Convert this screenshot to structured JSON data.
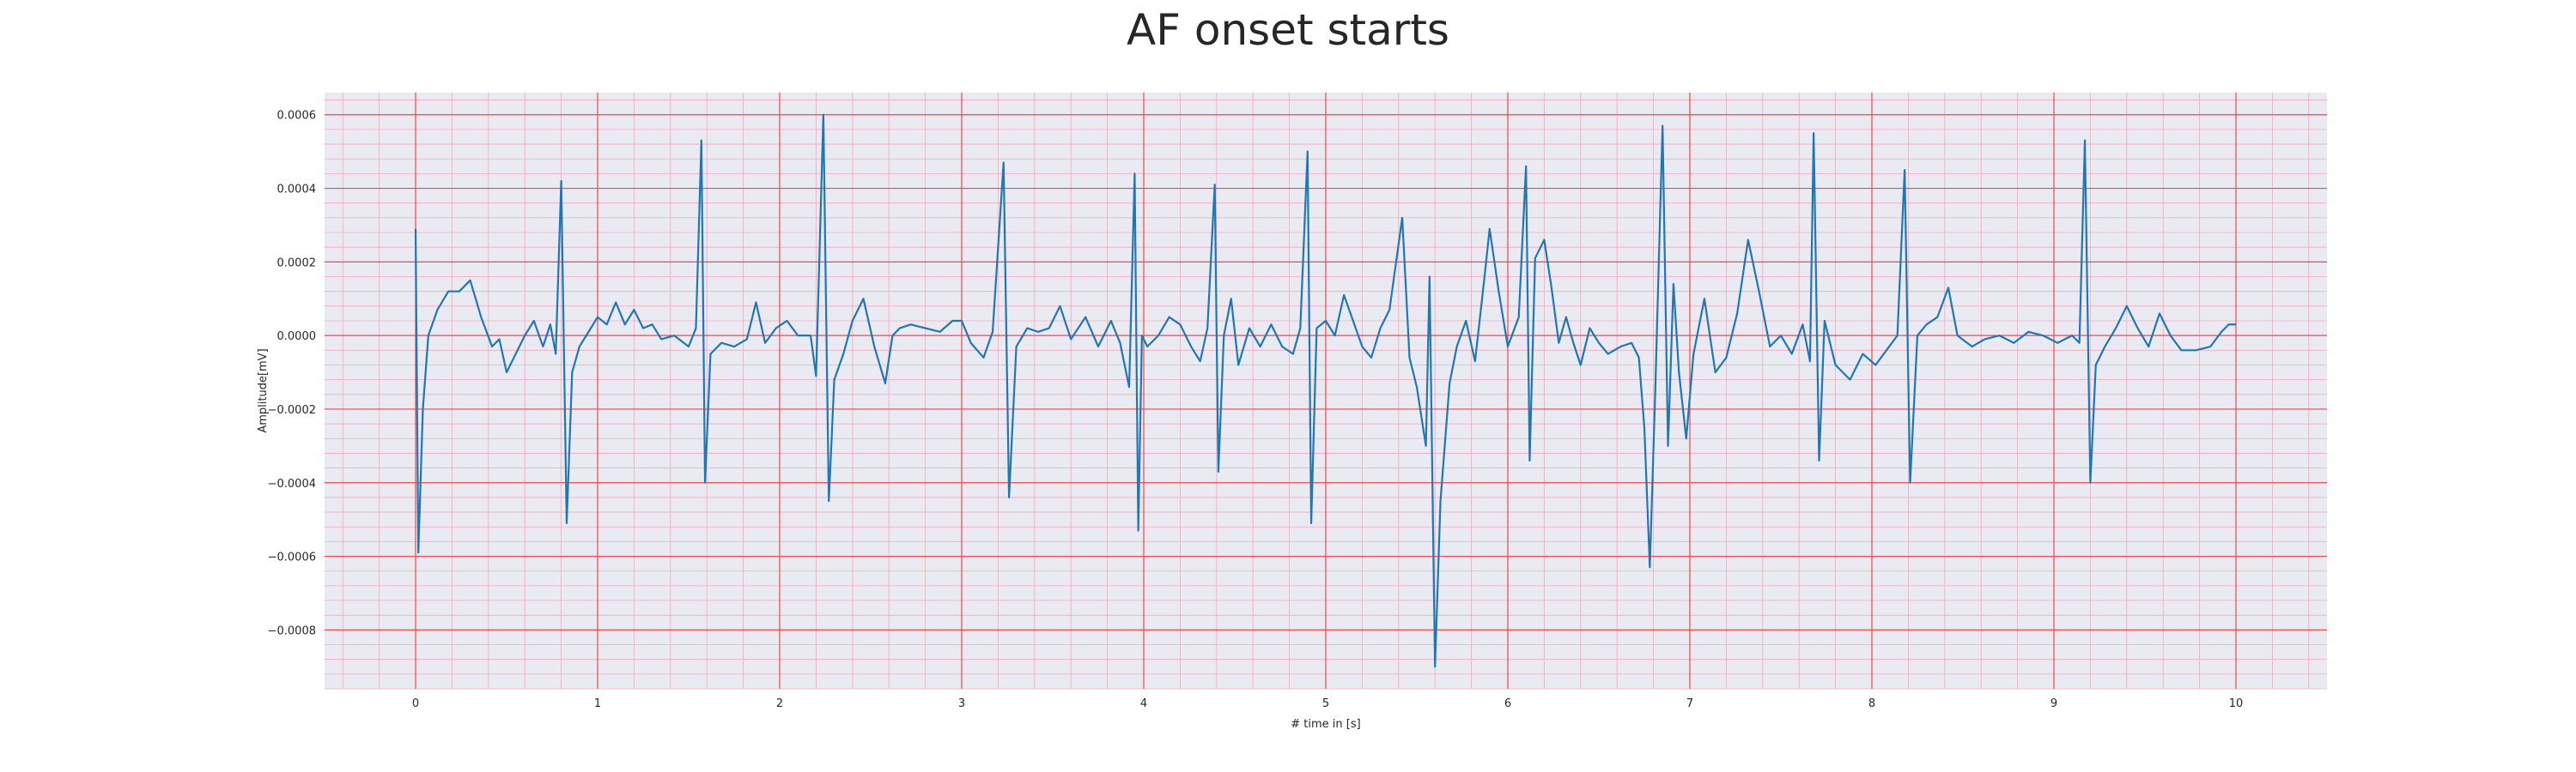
{
  "chart_data": {
    "type": "line",
    "title": "AF onset starts",
    "xlabel": "# time in [s]",
    "ylabel": "Amplitude[mV]",
    "xlim": [
      -0.5,
      10.5
    ],
    "ylim": [
      -0.00096,
      0.00066
    ],
    "x_ticks": [
      0,
      1,
      2,
      3,
      4,
      5,
      6,
      7,
      8,
      9,
      10
    ],
    "x_tick_labels": [
      "0",
      "1",
      "2",
      "3",
      "4",
      "5",
      "6",
      "7",
      "8",
      "9",
      "10"
    ],
    "y_ticks": [
      0.0006,
      0.0004,
      0.0002,
      0.0,
      -0.0002,
      -0.0004,
      -0.0006,
      -0.0008
    ],
    "y_tick_labels": [
      "0.0006",
      "0.0004",
      "0.0002",
      "0.0000",
      "−0.0002",
      "−0.0004",
      "−0.0006",
      "−0.0008"
    ],
    "grid": true,
    "major_grid_color": "#f04848",
    "minor_grid_color": "#f4a8b8",
    "background_color": "#eaeaf2",
    "series": [
      {
        "color": "#1f77b4",
        "points": [
          [
            0.0,
            0.00029
          ],
          [
            0.015,
            -0.00059
          ],
          [
            0.04,
            -0.0002
          ],
          [
            0.07,
            0.0
          ],
          [
            0.12,
            7e-05
          ],
          [
            0.18,
            0.00012
          ],
          [
            0.24,
            0.00012
          ],
          [
            0.3,
            0.00015
          ],
          [
            0.36,
            5e-05
          ],
          [
            0.42,
            -3e-05
          ],
          [
            0.46,
            -1e-05
          ],
          [
            0.5,
            -0.0001
          ],
          [
            0.55,
            -5e-05
          ],
          [
            0.6,
            0.0
          ],
          [
            0.65,
            4e-05
          ],
          [
            0.7,
            -3e-05
          ],
          [
            0.74,
            3e-05
          ],
          [
            0.77,
            -5e-05
          ],
          [
            0.8,
            0.00042
          ],
          [
            0.83,
            -0.00051
          ],
          [
            0.86,
            -0.0001
          ],
          [
            0.9,
            -3e-05
          ],
          [
            0.95,
            1e-05
          ],
          [
            1.0,
            5e-05
          ],
          [
            1.05,
            3e-05
          ],
          [
            1.1,
            9e-05
          ],
          [
            1.15,
            3e-05
          ],
          [
            1.2,
            7e-05
          ],
          [
            1.25,
            2e-05
          ],
          [
            1.3,
            3e-05
          ],
          [
            1.35,
            -1e-05
          ],
          [
            1.42,
            0.0
          ],
          [
            1.5,
            -3e-05
          ],
          [
            1.54,
            2e-05
          ],
          [
            1.57,
            0.00053
          ],
          [
            1.59,
            -0.0004
          ],
          [
            1.62,
            -5e-05
          ],
          [
            1.68,
            -2e-05
          ],
          [
            1.75,
            -3e-05
          ],
          [
            1.82,
            -1e-05
          ],
          [
            1.87,
            9e-05
          ],
          [
            1.92,
            -2e-05
          ],
          [
            1.98,
            2e-05
          ],
          [
            2.04,
            4e-05
          ],
          [
            2.1,
            0.0
          ],
          [
            2.17,
            0.0
          ],
          [
            2.2,
            -0.00011
          ],
          [
            2.24,
            0.0006
          ],
          [
            2.27,
            -0.00045
          ],
          [
            2.3,
            -0.00012
          ],
          [
            2.35,
            -5e-05
          ],
          [
            2.4,
            4e-05
          ],
          [
            2.46,
            0.0001
          ],
          [
            2.52,
            -3e-05
          ],
          [
            2.58,
            -0.00013
          ],
          [
            2.62,
            0.0
          ],
          [
            2.66,
            2e-05
          ],
          [
            2.72,
            3e-05
          ],
          [
            2.8,
            2e-05
          ],
          [
            2.88,
            1e-05
          ],
          [
            2.95,
            4e-05
          ],
          [
            3.0,
            4e-05
          ],
          [
            3.05,
            -2e-05
          ],
          [
            3.12,
            -6e-05
          ],
          [
            3.17,
            1e-05
          ],
          [
            3.23,
            0.00047
          ],
          [
            3.26,
            -0.00044
          ],
          [
            3.3,
            -3e-05
          ],
          [
            3.36,
            2e-05
          ],
          [
            3.42,
            1e-05
          ],
          [
            3.48,
            2e-05
          ],
          [
            3.54,
            8e-05
          ],
          [
            3.6,
            -1e-05
          ],
          [
            3.68,
            5e-05
          ],
          [
            3.75,
            -3e-05
          ],
          [
            3.82,
            4e-05
          ],
          [
            3.87,
            -2e-05
          ],
          [
            3.92,
            -0.00014
          ],
          [
            3.95,
            0.00044
          ],
          [
            3.97,
            -0.00053
          ],
          [
            3.99,
            0.0
          ],
          [
            4.02,
            -3e-05
          ],
          [
            4.08,
            0.0
          ],
          [
            4.14,
            5e-05
          ],
          [
            4.2,
            3e-05
          ],
          [
            4.26,
            -3e-05
          ],
          [
            4.31,
            -7e-05
          ],
          [
            4.35,
            2e-05
          ],
          [
            4.39,
            0.00041
          ],
          [
            4.41,
            -0.00037
          ],
          [
            4.44,
            0.0
          ],
          [
            4.48,
            0.0001
          ],
          [
            4.52,
            -8e-05
          ],
          [
            4.58,
            2e-05
          ],
          [
            4.64,
            -3e-05
          ],
          [
            4.7,
            3e-05
          ],
          [
            4.76,
            -3e-05
          ],
          [
            4.82,
            -5e-05
          ],
          [
            4.86,
            2e-05
          ],
          [
            4.9,
            0.0005
          ],
          [
            4.92,
            -0.00051
          ],
          [
            4.95,
            2e-05
          ],
          [
            5.0,
            4e-05
          ],
          [
            5.05,
            0.0
          ],
          [
            5.1,
            0.00011
          ],
          [
            5.15,
            4e-05
          ],
          [
            5.2,
            -3e-05
          ],
          [
            5.25,
            -6e-05
          ],
          [
            5.3,
            2e-05
          ],
          [
            5.35,
            7e-05
          ],
          [
            5.42,
            0.00032
          ],
          [
            5.46,
            -6e-05
          ],
          [
            5.5,
            -0.00014
          ],
          [
            5.55,
            -0.0003
          ],
          [
            5.57,
            0.00016
          ],
          [
            5.6,
            -0.0009
          ],
          [
            5.63,
            -0.00045
          ],
          [
            5.68,
            -0.00013
          ],
          [
            5.72,
            -3e-05
          ],
          [
            5.77,
            4e-05
          ],
          [
            5.82,
            -7e-05
          ],
          [
            5.87,
            0.00015
          ],
          [
            5.9,
            0.00029
          ],
          [
            5.95,
            0.00012
          ],
          [
            6.0,
            -3e-05
          ],
          [
            6.06,
            5e-05
          ],
          [
            6.1,
            0.00046
          ],
          [
            6.12,
            -0.00034
          ],
          [
            6.15,
            0.00021
          ],
          [
            6.2,
            0.00026
          ],
          [
            6.24,
            0.00013
          ],
          [
            6.28,
            -2e-05
          ],
          [
            6.32,
            5e-05
          ],
          [
            6.36,
            -2e-05
          ],
          [
            6.4,
            -8e-05
          ],
          [
            6.45,
            2e-05
          ],
          [
            6.5,
            -2e-05
          ],
          [
            6.55,
            -5e-05
          ],
          [
            6.62,
            -3e-05
          ],
          [
            6.68,
            -2e-05
          ],
          [
            6.72,
            -6e-05
          ],
          [
            6.75,
            -0.00025
          ],
          [
            6.78,
            -0.00063
          ],
          [
            6.81,
            -0.00015
          ],
          [
            6.85,
            0.00057
          ],
          [
            6.88,
            -0.0003
          ],
          [
            6.91,
            0.00014
          ],
          [
            6.94,
            -0.0001
          ],
          [
            6.98,
            -0.00028
          ],
          [
            7.02,
            -5e-05
          ],
          [
            7.08,
            0.0001
          ],
          [
            7.14,
            -0.0001
          ],
          [
            7.2,
            -6e-05
          ],
          [
            7.26,
            6e-05
          ],
          [
            7.32,
            0.00026
          ],
          [
            7.38,
            0.00012
          ],
          [
            7.44,
            -3e-05
          ],
          [
            7.5,
            0.0
          ],
          [
            7.56,
            -5e-05
          ],
          [
            7.62,
            3e-05
          ],
          [
            7.66,
            -7e-05
          ],
          [
            7.68,
            0.00055
          ],
          [
            7.71,
            -0.00034
          ],
          [
            7.74,
            4e-05
          ],
          [
            7.8,
            -8e-05
          ],
          [
            7.88,
            -0.00012
          ],
          [
            7.95,
            -5e-05
          ],
          [
            8.02,
            -8e-05
          ],
          [
            8.08,
            -4e-05
          ],
          [
            8.14,
            0.0
          ],
          [
            8.18,
            0.00045
          ],
          [
            8.21,
            -0.0004
          ],
          [
            8.25,
            0.0
          ],
          [
            8.3,
            3e-05
          ],
          [
            8.36,
            5e-05
          ],
          [
            8.42,
            0.00013
          ],
          [
            8.47,
            0.0
          ],
          [
            8.55,
            -3e-05
          ],
          [
            8.62,
            -1e-05
          ],
          [
            8.7,
            0.0
          ],
          [
            8.78,
            -2e-05
          ],
          [
            8.86,
            1e-05
          ],
          [
            8.94,
            0.0
          ],
          [
            9.02,
            -2e-05
          ],
          [
            9.1,
            0.0
          ],
          [
            9.14,
            -2e-05
          ],
          [
            9.17,
            0.00053
          ],
          [
            9.2,
            -0.0004
          ],
          [
            9.23,
            -8e-05
          ],
          [
            9.28,
            -3e-05
          ],
          [
            9.34,
            2e-05
          ],
          [
            9.4,
            8e-05
          ],
          [
            9.46,
            2e-05
          ],
          [
            9.52,
            -3e-05
          ],
          [
            9.58,
            6e-05
          ],
          [
            9.64,
            0.0
          ],
          [
            9.7,
            -4e-05
          ],
          [
            9.78,
            -4e-05
          ],
          [
            9.86,
            -3e-05
          ],
          [
            9.92,
            1e-05
          ],
          [
            9.96,
            3e-05
          ],
          [
            10.0,
            3e-05
          ]
        ]
      }
    ]
  }
}
